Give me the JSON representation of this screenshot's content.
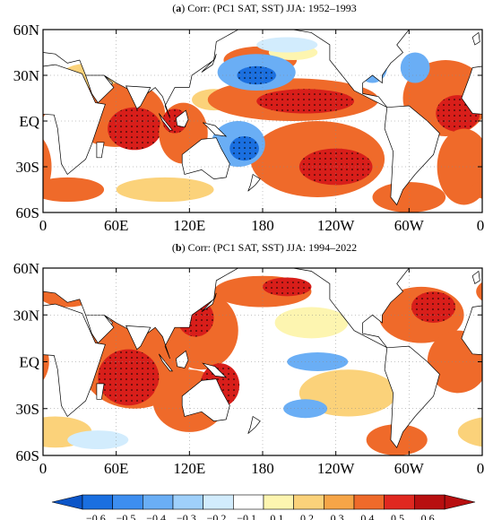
{
  "panels": [
    {
      "letter": "a",
      "title_rest": " Corr: (PC1 SAT, SST) JJA: 1952–1993",
      "ylabels": [
        "60N",
        "30N",
        "EQ",
        "30S",
        "60S"
      ],
      "xlabels": [
        "0",
        "60E",
        "120E",
        "180",
        "120W",
        "60W",
        "0"
      ],
      "blobs": [
        {
          "cls": 5,
          "lon": 60,
          "lat": 5,
          "rx": 40,
          "ry": 22
        },
        {
          "cls": 6,
          "lon": 75,
          "lat": -5,
          "rx": 22,
          "ry": 14
        },
        {
          "cls": 5,
          "lon": 115,
          "lat": -8,
          "rx": 20,
          "ry": 20
        },
        {
          "cls": 6,
          "lon": 108,
          "lat": 0,
          "rx": 10,
          "ry": 8
        },
        {
          "cls": 4,
          "lon": 140,
          "lat": 14,
          "rx": 18,
          "ry": 7
        },
        {
          "cls": 5,
          "lon": 205,
          "lat": 14,
          "rx": 70,
          "ry": 14
        },
        {
          "cls": 6,
          "lon": 215,
          "lat": 13,
          "rx": 40,
          "ry": 8
        },
        {
          "cls": 5,
          "lon": 178,
          "lat": 40,
          "rx": 30,
          "ry": 9
        },
        {
          "cls": 5,
          "lon": 225,
          "lat": -25,
          "rx": 55,
          "ry": 25
        },
        {
          "cls": 6,
          "lon": 240,
          "lat": -30,
          "rx": 30,
          "ry": 12
        },
        {
          "cls": 5,
          "lon": 330,
          "lat": 15,
          "rx": 35,
          "ry": 25
        },
        {
          "cls": 6,
          "lon": 340,
          "lat": 5,
          "rx": 18,
          "ry": 12
        },
        {
          "cls": 5,
          "lon": 345,
          "lat": -30,
          "rx": 22,
          "ry": 25
        },
        {
          "cls": 5,
          "lon": 300,
          "lat": -50,
          "rx": 30,
          "ry": 10
        },
        {
          "cls": 4,
          "lon": 40,
          "lat": 30,
          "rx": 25,
          "ry": 8
        },
        {
          "cls": 5,
          "lon": 20,
          "lat": -45,
          "rx": 30,
          "ry": 8
        },
        {
          "cls": 4,
          "lon": 100,
          "lat": -45,
          "rx": 40,
          "ry": 8
        },
        {
          "cls": 3,
          "lon": 205,
          "lat": 45,
          "rx": 20,
          "ry": 5
        },
        {
          "cls": 1,
          "lon": 175,
          "lat": 32,
          "rx": 32,
          "ry": 12
        },
        {
          "cls": 0,
          "lon": 175,
          "lat": 30,
          "rx": 16,
          "ry": 6
        },
        {
          "cls": 1,
          "lon": 160,
          "lat": -15,
          "rx": 22,
          "ry": 15
        },
        {
          "cls": 0,
          "lon": 165,
          "lat": -18,
          "rx": 12,
          "ry": 8
        },
        {
          "cls": 1,
          "lon": 270,
          "lat": 35,
          "rx": 12,
          "ry": 10
        },
        {
          "cls": 1,
          "lon": 305,
          "lat": 35,
          "rx": 12,
          "ry": 10
        },
        {
          "cls": 2,
          "lon": 200,
          "lat": 50,
          "rx": 25,
          "ry": 5
        },
        {
          "cls": 2,
          "lon": 120,
          "lat": 40,
          "rx": 10,
          "ry": 8
        }
      ]
    },
    {
      "letter": "b",
      "title_rest": " Corr: (PC1 SAT, SST) JJA: 1994–2022",
      "ylabels": [
        "60N",
        "30N",
        "EQ",
        "30S",
        "60S"
      ],
      "xlabels": [
        "0",
        "60E",
        "120E",
        "180",
        "120W",
        "60W",
        "0"
      ],
      "blobs": [
        {
          "cls": 5,
          "lon": 75,
          "lat": 0,
          "rx": 45,
          "ry": 30
        },
        {
          "cls": 6,
          "lon": 70,
          "lat": -10,
          "rx": 25,
          "ry": 18
        },
        {
          "cls": 5,
          "lon": 130,
          "lat": 20,
          "rx": 30,
          "ry": 25
        },
        {
          "cls": 6,
          "lon": 125,
          "lat": 28,
          "rx": 15,
          "ry": 12
        },
        {
          "cls": 5,
          "lon": 120,
          "lat": -25,
          "rx": 30,
          "ry": 20
        },
        {
          "cls": 6,
          "lon": 145,
          "lat": -15,
          "rx": 16,
          "ry": 14
        },
        {
          "cls": 5,
          "lon": 180,
          "lat": 45,
          "rx": 40,
          "ry": 10
        },
        {
          "cls": 6,
          "lon": 200,
          "lat": 48,
          "rx": 20,
          "ry": 6
        },
        {
          "cls": 5,
          "lon": 310,
          "lat": 30,
          "rx": 35,
          "ry": 18
        },
        {
          "cls": 6,
          "lon": 320,
          "lat": 35,
          "rx": 18,
          "ry": 10
        },
        {
          "cls": 5,
          "lon": 340,
          "lat": 0,
          "rx": 25,
          "ry": 20
        },
        {
          "cls": 5,
          "lon": 290,
          "lat": -50,
          "rx": 25,
          "ry": 10
        },
        {
          "cls": 5,
          "lon": 20,
          "lat": 45,
          "rx": 25,
          "ry": 10
        },
        {
          "cls": 4,
          "lon": 250,
          "lat": -20,
          "rx": 40,
          "ry": 15
        },
        {
          "cls": 4,
          "lon": 10,
          "lat": -45,
          "rx": 30,
          "ry": 10
        },
        {
          "cls": 3,
          "lon": 220,
          "lat": 25,
          "rx": 30,
          "ry": 10
        },
        {
          "cls": 1,
          "lon": 225,
          "lat": 0,
          "rx": 25,
          "ry": 6
        },
        {
          "cls": 1,
          "lon": 215,
          "lat": -30,
          "rx": 18,
          "ry": 6
        },
        {
          "cls": 2,
          "lon": 265,
          "lat": 45,
          "rx": 12,
          "ry": 6
        },
        {
          "cls": 2,
          "lon": 45,
          "lat": -50,
          "rx": 25,
          "ry": 6
        }
      ]
    }
  ],
  "colorbar": {
    "labels": [
      "−0.6",
      "−0.5",
      "−0.4",
      "−0.3",
      "−0.2",
      "−0.1",
      "0.1",
      "0.2",
      "0.3",
      "0.4",
      "0.5",
      "0.6"
    ],
    "colors": [
      "#1a6fe0",
      "#3d8ef0",
      "#6aaef5",
      "#9fd0fb",
      "#d2ecfd",
      "#ffffff",
      "#fdf5b0",
      "#fbd27a",
      "#f6a547",
      "#ef6a2a",
      "#e02820",
      "#b80f10"
    ],
    "arrow_low": "#0b55c8",
    "arrow_high": "#b80f10"
  },
  "class_colors": [
    "#1a6fe0",
    "#6aaef5",
    "#d2ecfd",
    "#fdf5b0",
    "#fbd27a",
    "#ef6a2a",
    "#d81e1a"
  ]
}
